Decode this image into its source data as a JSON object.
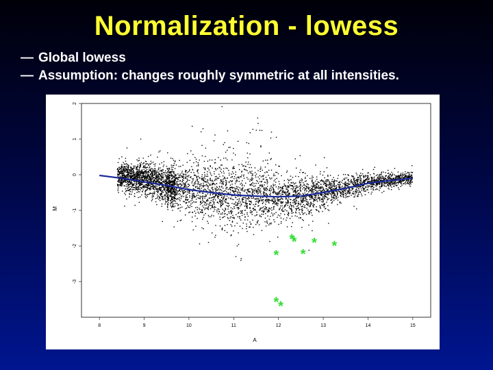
{
  "slide": {
    "title": "Normalization - lowess",
    "bullets": [
      {
        "marker": "—",
        "text": "Global lowess"
      },
      {
        "marker": "—",
        "text": "Assumption: changes roughly symmetric at all intensities."
      }
    ]
  },
  "colors": {
    "title": "#ffff33",
    "bullet_text": "#ffffff",
    "background_top": "#000008",
    "background_bottom": "#001590",
    "points": "#000000",
    "lowess_curve": "#1a2a9a",
    "highlight_stars": "#33dd33"
  },
  "chart_data": {
    "type": "scatter",
    "xlabel": "A",
    "ylabel": "M",
    "xlim": [
      7.6,
      15.4
    ],
    "ylim": [
      -4.0,
      2.0
    ],
    "x_ticks": [
      8,
      9,
      10,
      11,
      12,
      13,
      14,
      15
    ],
    "y_ticks": [
      2,
      1,
      0,
      -1,
      -2,
      -3
    ],
    "x_tick_labels": [
      "8",
      "9",
      "10",
      "11",
      "12",
      "13",
      "14",
      "15"
    ],
    "y_tick_labels": [
      "2",
      "1",
      "0",
      "-1",
      "-2",
      "-3"
    ],
    "grid": false,
    "series": [
      {
        "kind": "points",
        "marker": "dot",
        "approx_count": 5000,
        "density_profile": [
          {
            "x": 8.5,
            "mean_m": -0.05,
            "spread": 0.22
          },
          {
            "x": 9.0,
            "mean_m": -0.12,
            "spread": 0.3
          },
          {
            "x": 9.5,
            "mean_m": -0.28,
            "spread": 0.35
          },
          {
            "x": 10.0,
            "mean_m": -0.42,
            "spread": 0.45
          },
          {
            "x": 10.5,
            "mean_m": -0.52,
            "spread": 0.55
          },
          {
            "x": 11.0,
            "mean_m": -0.6,
            "spread": 0.6
          },
          {
            "x": 11.5,
            "mean_m": -0.62,
            "spread": 0.55
          },
          {
            "x": 12.0,
            "mean_m": -0.65,
            "spread": 0.45
          },
          {
            "x": 12.5,
            "mean_m": -0.62,
            "spread": 0.38
          },
          {
            "x": 13.0,
            "mean_m": -0.5,
            "spread": 0.3
          },
          {
            "x": 13.5,
            "mean_m": -0.35,
            "spread": 0.22
          },
          {
            "x": 14.0,
            "mean_m": -0.22,
            "spread": 0.18
          },
          {
            "x": 14.5,
            "mean_m": -0.15,
            "spread": 0.12
          },
          {
            "x": 15.0,
            "mean_m": -0.1,
            "spread": 0.1
          }
        ]
      },
      {
        "kind": "line",
        "x": [
          8.0,
          8.5,
          9.0,
          9.5,
          10.0,
          10.5,
          11.0,
          11.5,
          12.0,
          12.5,
          13.0,
          13.5,
          14.0,
          14.5,
          15.0
        ],
        "y": [
          -0.02,
          -0.1,
          -0.2,
          -0.3,
          -0.42,
          -0.5,
          -0.57,
          -0.6,
          -0.62,
          -0.6,
          -0.5,
          -0.38,
          -0.24,
          -0.16,
          -0.1
        ]
      },
      {
        "kind": "stars",
        "marker": "*",
        "x": [
          11.95,
          12.3,
          12.35,
          12.55,
          12.8,
          13.25,
          11.95,
          12.05
        ],
        "y": [
          -2.23,
          -1.78,
          -1.86,
          -2.2,
          -1.88,
          -1.97,
          -3.55,
          -3.66
        ]
      }
    ]
  }
}
